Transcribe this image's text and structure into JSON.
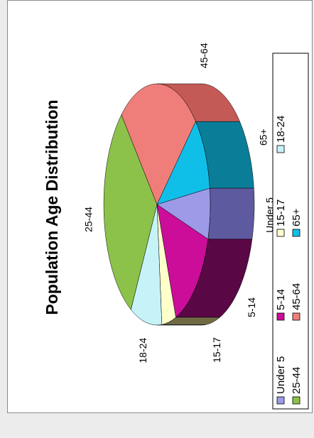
{
  "chart_data": {
    "type": "pie",
    "title": "Population Age Distribution",
    "categories": [
      "Under 5",
      "5-14",
      "15-17",
      "18-24",
      "25-44",
      "45-64",
      "65+"
    ],
    "values": [
      6.8,
      14.6,
      4.3,
      9.6,
      30.2,
      24.6,
      9.9
    ],
    "colors": [
      "#9d9ae8",
      "#cc0d99",
      "#ffffcc",
      "#c6f3f7",
      "#8dc24a",
      "#ef7e7a",
      "#10bfe8"
    ],
    "side_colors": [
      "#5e5aa0",
      "#5a0745",
      "#6f6a44",
      "#5a7b7c",
      "#4d7526",
      "#c45a56",
      "#0a7e98"
    ],
    "legend_placement": "right",
    "view": "3d-tilted"
  }
}
